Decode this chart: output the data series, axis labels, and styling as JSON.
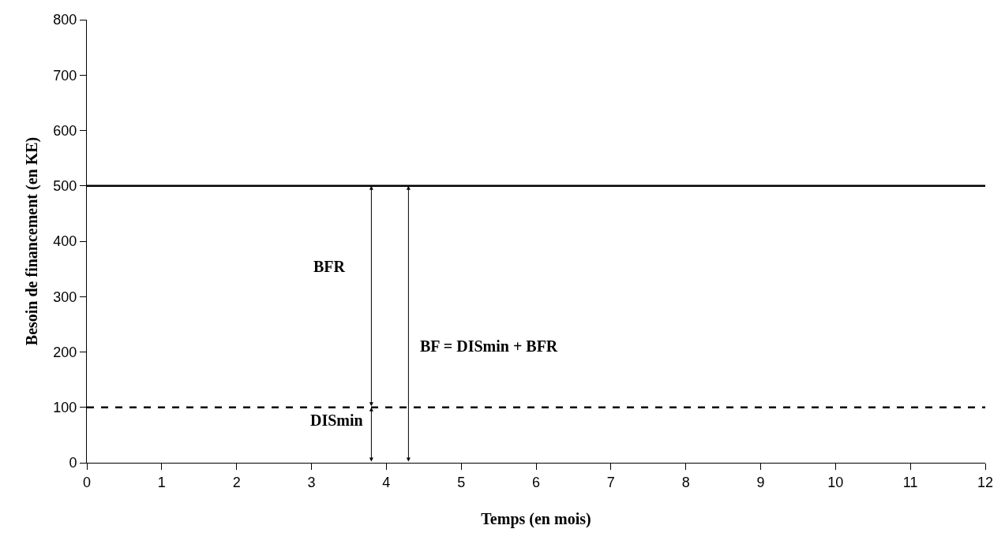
{
  "chart_data": {
    "type": "line",
    "xlabel": "Temps (en mois)",
    "ylabel": "Besoin de financement (en KE)",
    "x": [
      0,
      12
    ],
    "series": [
      {
        "color": "#000000",
        "values": [
          500,
          500
        ],
        "line_style": "solid"
      },
      {
        "color": "#000000",
        "values": [
          100,
          100
        ],
        "line_style": "dashed"
      }
    ],
    "xlim": [
      0,
      12
    ],
    "xticks": [
      0,
      1,
      2,
      3,
      4,
      5,
      6,
      7,
      8,
      9,
      10,
      11,
      12
    ],
    "ylim": [
      0,
      800
    ],
    "yticks": [
      0,
      100,
      200,
      300,
      400,
      500,
      600,
      700,
      800
    ],
    "grid": false,
    "legend": false,
    "marker": "none",
    "annotations": [
      "BFR",
      "BF = DISmin + BFR",
      "DISmin"
    ]
  }
}
